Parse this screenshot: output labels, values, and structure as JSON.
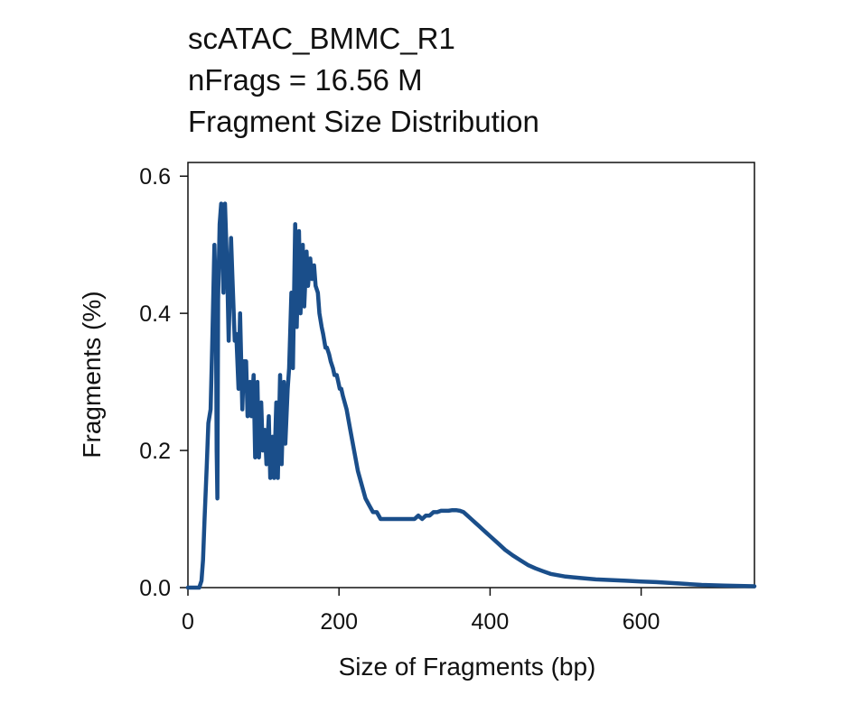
{
  "chart_data": {
    "type": "line",
    "title_lines": [
      "scATAC_BMMC_R1",
      "nFrags = 16.56 M",
      "Fragment Size Distribution"
    ],
    "xlabel": "Size of Fragments (bp)",
    "ylabel": "Fragments (%)",
    "xlim": [
      0,
      750
    ],
    "ylim": [
      0,
      0.62
    ],
    "xticks": [
      0,
      200,
      400,
      600
    ],
    "yticks": [
      0.0,
      0.2,
      0.4,
      0.6
    ],
    "xtick_labels": [
      "0",
      "200",
      "400",
      "600"
    ],
    "ytick_labels": [
      "0.0",
      "0.2",
      "0.4",
      "0.6"
    ],
    "grid": false,
    "line_color": "#1a4e8a",
    "series": [
      {
        "x": [
          0,
          15,
          18,
          20,
          22,
          25,
          27,
          30,
          32,
          35,
          37,
          38,
          39,
          40,
          42,
          44,
          47,
          49,
          52,
          54,
          57,
          59,
          62,
          64,
          67,
          69,
          72,
          74,
          77,
          79,
          82,
          84,
          87,
          89,
          92,
          94,
          97,
          99,
          102,
          104,
          107,
          109,
          112,
          114,
          117,
          119,
          122,
          124,
          127,
          129,
          132,
          134,
          137,
          139,
          142,
          144,
          147,
          149,
          152,
          154,
          157,
          159,
          162,
          164,
          167,
          169,
          172,
          174,
          177,
          179,
          182,
          184,
          187,
          189,
          192,
          194,
          197,
          199,
          201,
          203,
          205,
          210,
          215,
          220,
          225,
          230,
          235,
          240,
          245,
          250,
          255,
          260,
          265,
          270,
          275,
          280,
          285,
          290,
          295,
          300,
          305,
          310,
          315,
          320,
          325,
          330,
          335,
          340,
          345,
          350,
          355,
          360,
          365,
          370,
          375,
          380,
          385,
          390,
          395,
          400,
          410,
          420,
          430,
          440,
          450,
          460,
          470,
          480,
          490,
          500,
          520,
          540,
          560,
          580,
          600,
          620,
          650,
          680,
          710,
          750
        ],
        "y": [
          0.0,
          0.0,
          0.01,
          0.04,
          0.1,
          0.18,
          0.24,
          0.26,
          0.35,
          0.5,
          0.42,
          0.2,
          0.13,
          0.42,
          0.53,
          0.56,
          0.43,
          0.56,
          0.46,
          0.36,
          0.51,
          0.45,
          0.36,
          0.37,
          0.29,
          0.4,
          0.26,
          0.33,
          0.33,
          0.25,
          0.3,
          0.25,
          0.31,
          0.19,
          0.3,
          0.19,
          0.27,
          0.2,
          0.23,
          0.18,
          0.25,
          0.16,
          0.22,
          0.16,
          0.27,
          0.16,
          0.31,
          0.18,
          0.3,
          0.21,
          0.29,
          0.32,
          0.43,
          0.32,
          0.53,
          0.38,
          0.52,
          0.4,
          0.5,
          0.41,
          0.49,
          0.44,
          0.48,
          0.45,
          0.47,
          0.44,
          0.43,
          0.4,
          0.38,
          0.37,
          0.35,
          0.35,
          0.34,
          0.33,
          0.32,
          0.31,
          0.31,
          0.3,
          0.29,
          0.29,
          0.28,
          0.26,
          0.23,
          0.2,
          0.17,
          0.15,
          0.13,
          0.12,
          0.11,
          0.11,
          0.1,
          0.1,
          0.1,
          0.1,
          0.1,
          0.1,
          0.1,
          0.1,
          0.1,
          0.1,
          0.105,
          0.1,
          0.105,
          0.105,
          0.11,
          0.11,
          0.112,
          0.112,
          0.112,
          0.113,
          0.113,
          0.112,
          0.11,
          0.105,
          0.1,
          0.095,
          0.09,
          0.085,
          0.08,
          0.075,
          0.065,
          0.055,
          0.047,
          0.04,
          0.033,
          0.028,
          0.024,
          0.02,
          0.018,
          0.016,
          0.014,
          0.012,
          0.011,
          0.01,
          0.009,
          0.008,
          0.006,
          0.004,
          0.003,
          0.002
        ]
      }
    ]
  }
}
